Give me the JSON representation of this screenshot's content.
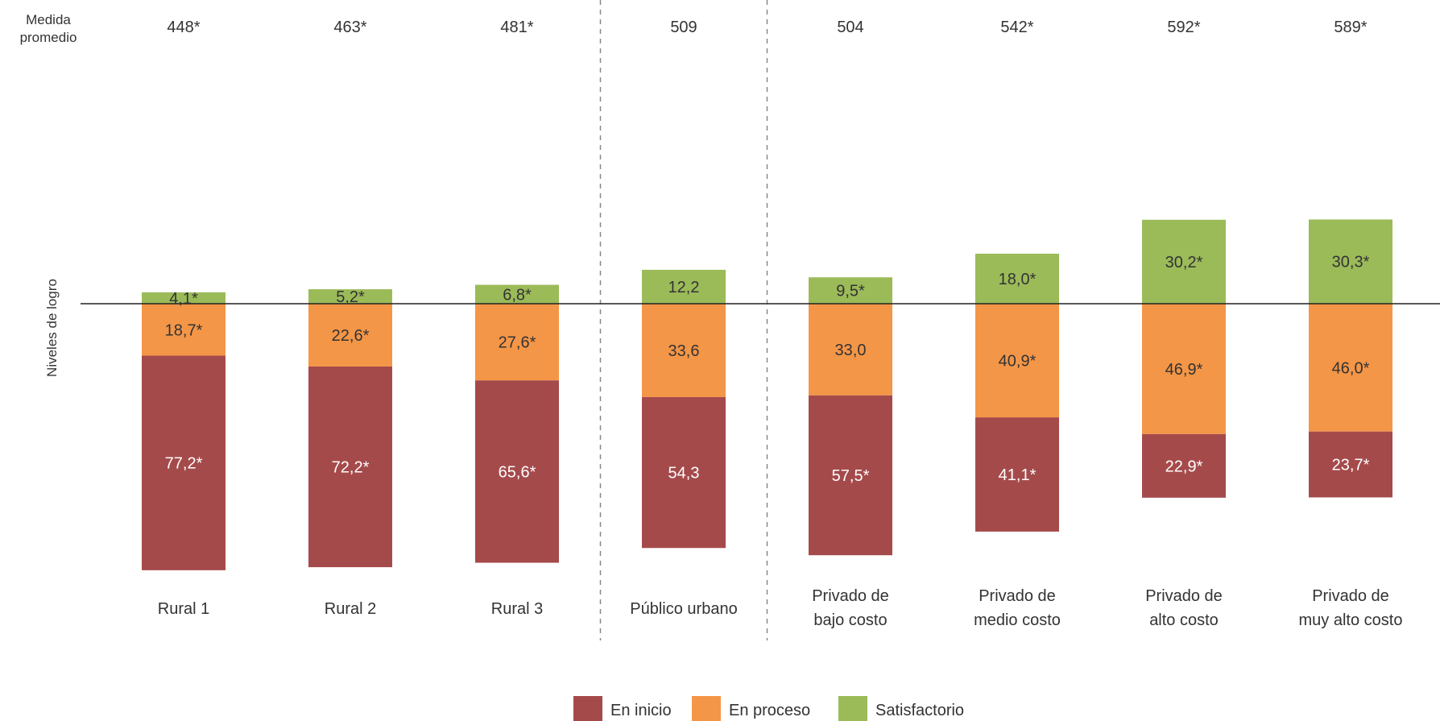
{
  "chart_data": {
    "type": "bar",
    "stacked": true,
    "diverging": true,
    "baseline_after_series": "En proceso",
    "row_labels": {
      "mean": "Medida promedio",
      "axis": "Niveles de logro"
    },
    "categories": [
      "Rural 1",
      "Rural 2",
      "Rural 3",
      "Público urbano",
      "Privado de bajo costo",
      "Privado de medio costo",
      "Privado de alto costo",
      "Privado de muy alto costo"
    ],
    "category_lines": [
      [
        "Rural 1"
      ],
      [
        "Rural 2"
      ],
      [
        "Rural 3"
      ],
      [
        "Público urbano"
      ],
      [
        "Privado de",
        "bajo costo"
      ],
      [
        "Privado de",
        "medio costo"
      ],
      [
        "Privado de",
        "alto costo"
      ],
      [
        "Privado de",
        "muy alto costo"
      ]
    ],
    "mean_scores": [
      "448*",
      "463*",
      "481*",
      "509",
      "504",
      "542*",
      "592*",
      "589*"
    ],
    "series": [
      {
        "name": "En inicio",
        "color": "#a54a4b",
        "label_color": "#ffffff",
        "values": [
          77.2,
          72.2,
          65.6,
          54.3,
          57.5,
          41.1,
          22.9,
          23.7
        ],
        "labels": [
          "77,2*",
          "72,2*",
          "65,6*",
          "54,3",
          "57,5*",
          "41,1*",
          "22,9*",
          "23,7*"
        ]
      },
      {
        "name": "En proceso",
        "color": "#f49647",
        "label_color": "#333333",
        "values": [
          18.7,
          22.6,
          27.6,
          33.6,
          33.0,
          40.9,
          46.9,
          46.0
        ],
        "labels": [
          "18,7*",
          "22,6*",
          "27,6*",
          "33,6",
          "33,0",
          "40,9*",
          "46,9*",
          "46,0*"
        ]
      },
      {
        "name": "Satisfactorio",
        "color": "#9bbb59",
        "label_color": "#333333",
        "values": [
          4.1,
          5.2,
          6.8,
          12.2,
          9.5,
          18.0,
          30.2,
          30.3
        ],
        "labels": [
          "4,1*",
          "5,2*",
          "6,8*",
          "12,2",
          "9,5*",
          "18,0*",
          "30,2*",
          "30,3*"
        ]
      }
    ],
    "group_separators_after": [
      2,
      3
    ],
    "legend_position": "bottom-center",
    "grid": false
  }
}
